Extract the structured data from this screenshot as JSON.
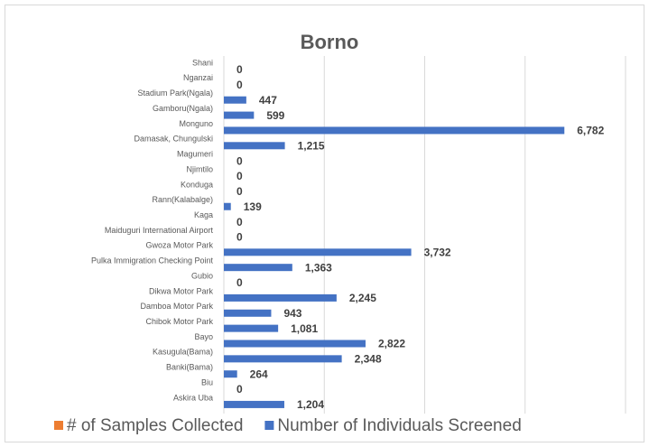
{
  "chart_data": {
    "type": "bar",
    "orientation": "horizontal",
    "title": "Borno",
    "categories": [
      "Shani",
      "Nganzai",
      "Stadium Park(Ngala)",
      "Gamboru(Ngala)",
      "Monguno",
      "Damasak, Chungulski",
      "Magumeri",
      "Njimtilo",
      "Konduga",
      "Rann(Kalabalge)",
      "Kaga",
      "Maiduguri International Airport",
      "Gwoza Motor Park",
      "Pulka Immigration Checking Point",
      "Gubio",
      "Dikwa Motor Park",
      "Damboa Motor Park",
      "Chibok Motor Park",
      "Bayo",
      "Kasugula(Bama)",
      "Banki(Bama)",
      "Biu",
      "Askira Uba"
    ],
    "series": [
      {
        "name": "# of Samples Collected",
        "color": "#ed7d31",
        "values": [
          0,
          0,
          0,
          0,
          0,
          0,
          0,
          0,
          0,
          0,
          0,
          0,
          0,
          0,
          0,
          0,
          0,
          0,
          0,
          0,
          0,
          0,
          0
        ]
      },
      {
        "name": "Number of Individuals Screened",
        "color": "#4472c4",
        "values": [
          0,
          0,
          447,
          599,
          6782,
          1215,
          0,
          0,
          0,
          139,
          0,
          0,
          3732,
          1363,
          0,
          2245,
          943,
          1081,
          2822,
          2348,
          264,
          0,
          1204
        ],
        "value_labels": [
          "0",
          "0",
          "447",
          "599",
          "6,782",
          "1,215",
          "0",
          "0",
          "0",
          "139",
          "0",
          "0",
          "3,732",
          "1,363",
          "0",
          "2,245",
          "943",
          "1,081",
          "2,822",
          "2,348",
          "264",
          "0",
          "1,204"
        ]
      }
    ],
    "xlim": [
      0,
      8000
    ],
    "xticks": [
      0,
      2000,
      4000,
      6000,
      8000
    ],
    "grid": true,
    "legend": "bottom"
  }
}
